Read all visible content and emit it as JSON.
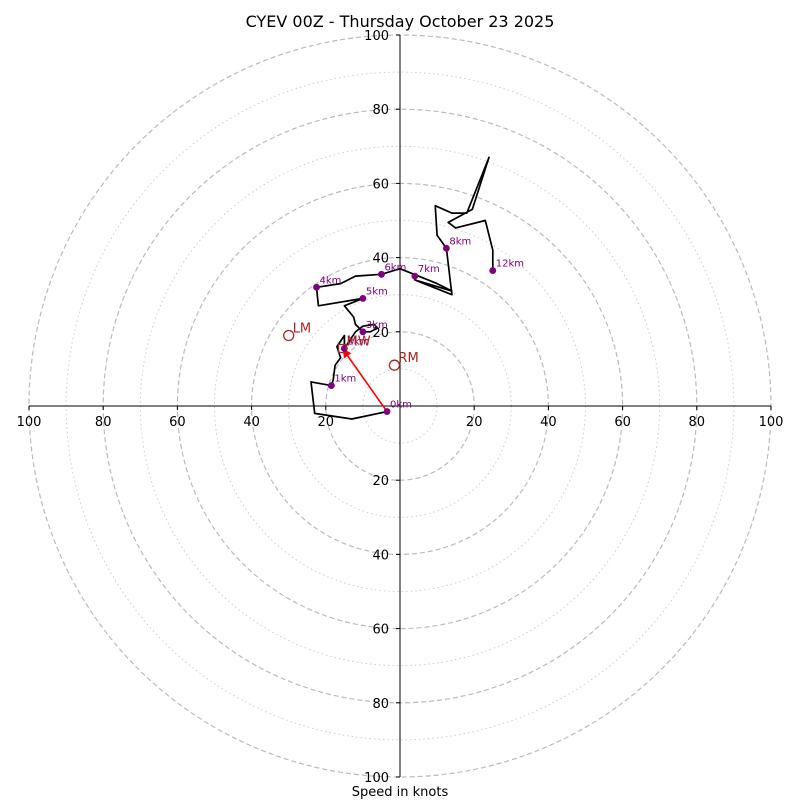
{
  "chart_data": {
    "type": "hodograph",
    "title": "CYEV 00Z - Thursday October 23 2025",
    "xlabel": "Speed in knots",
    "axis_range": [
      -100,
      100
    ],
    "ring_major": [
      20,
      40,
      60,
      80,
      100
    ],
    "ring_minor": [
      10,
      30,
      50,
      70,
      90
    ],
    "x_tick_labels": [
      "100",
      "80",
      "60",
      "40",
      "20",
      "20",
      "40",
      "60",
      "80",
      "100"
    ],
    "y_tick_labels": [
      "100",
      "80",
      "60",
      "40",
      "20",
      "20",
      "40",
      "60",
      "80",
      "100"
    ],
    "colors": {
      "trace": "#000000",
      "heights": "#800080",
      "motion": "#b22222",
      "arrow": "#ff0000",
      "grid": "#bbbbbb"
    },
    "hodograph_uv": [
      [
        -3.5,
        -1.5
      ],
      [
        -13,
        -3.5
      ],
      [
        -23,
        -2
      ],
      [
        -24,
        6.5
      ],
      [
        -18.5,
        5.5
      ],
      [
        -18,
        7
      ],
      [
        -17.5,
        11
      ],
      [
        -16,
        13
      ],
      [
        -17,
        16
      ],
      [
        -15,
        19
      ],
      [
        -15,
        15.5
      ],
      [
        -12,
        20
      ],
      [
        -10,
        21.5
      ],
      [
        -7,
        22
      ],
      [
        -6,
        21
      ],
      [
        -8,
        20
      ],
      [
        -10,
        20
      ],
      [
        -12,
        22
      ],
      [
        -12.5,
        24
      ],
      [
        -15,
        27
      ],
      [
        -10,
        29
      ],
      [
        -22,
        27
      ],
      [
        -22.5,
        32
      ],
      [
        -16,
        33
      ],
      [
        -12,
        35
      ],
      [
        -5,
        35.5
      ],
      [
        0,
        37
      ],
      [
        10,
        33
      ],
      [
        14,
        31
      ],
      [
        4,
        34
      ],
      [
        14,
        30
      ],
      [
        12.5,
        42.5
      ],
      [
        10,
        46
      ],
      [
        9.5,
        54
      ],
      [
        14,
        52
      ],
      [
        18,
        52
      ],
      [
        24,
        67
      ],
      [
        19.5,
        53
      ],
      [
        13,
        49.5
      ],
      [
        15,
        48
      ],
      [
        23,
        50
      ],
      [
        25,
        42
      ],
      [
        25,
        36.5
      ]
    ],
    "height_markers": [
      {
        "label": "0km",
        "u": -3.5,
        "v": -1.5
      },
      {
        "label": "1km",
        "u": -18.5,
        "v": 5.5
      },
      {
        "label": "2km",
        "u": -15,
        "v": 15.5
      },
      {
        "label": "3km",
        "u": -10,
        "v": 20
      },
      {
        "label": "4km",
        "u": -22.5,
        "v": 32
      },
      {
        "label": "5km",
        "u": -10,
        "v": 29
      },
      {
        "label": "6km",
        "u": -5,
        "v": 35.5
      },
      {
        "label": "7km",
        "u": 4,
        "v": 35
      },
      {
        "label": "8km",
        "u": 12.5,
        "v": 42.5
      },
      {
        "label": "12km",
        "u": 25,
        "v": 36.5
      }
    ],
    "storm_motions": [
      {
        "label": "LM",
        "u": -30,
        "v": 19
      },
      {
        "label": "RM",
        "u": -1.5,
        "v": 11
      },
      {
        "label": "MW",
        "u": -15.5,
        "v": 15.5
      }
    ],
    "shear_arrow": {
      "from": [
        -3.5,
        -1.5
      ],
      "to": [
        -15.5,
        15.5
      ]
    }
  }
}
